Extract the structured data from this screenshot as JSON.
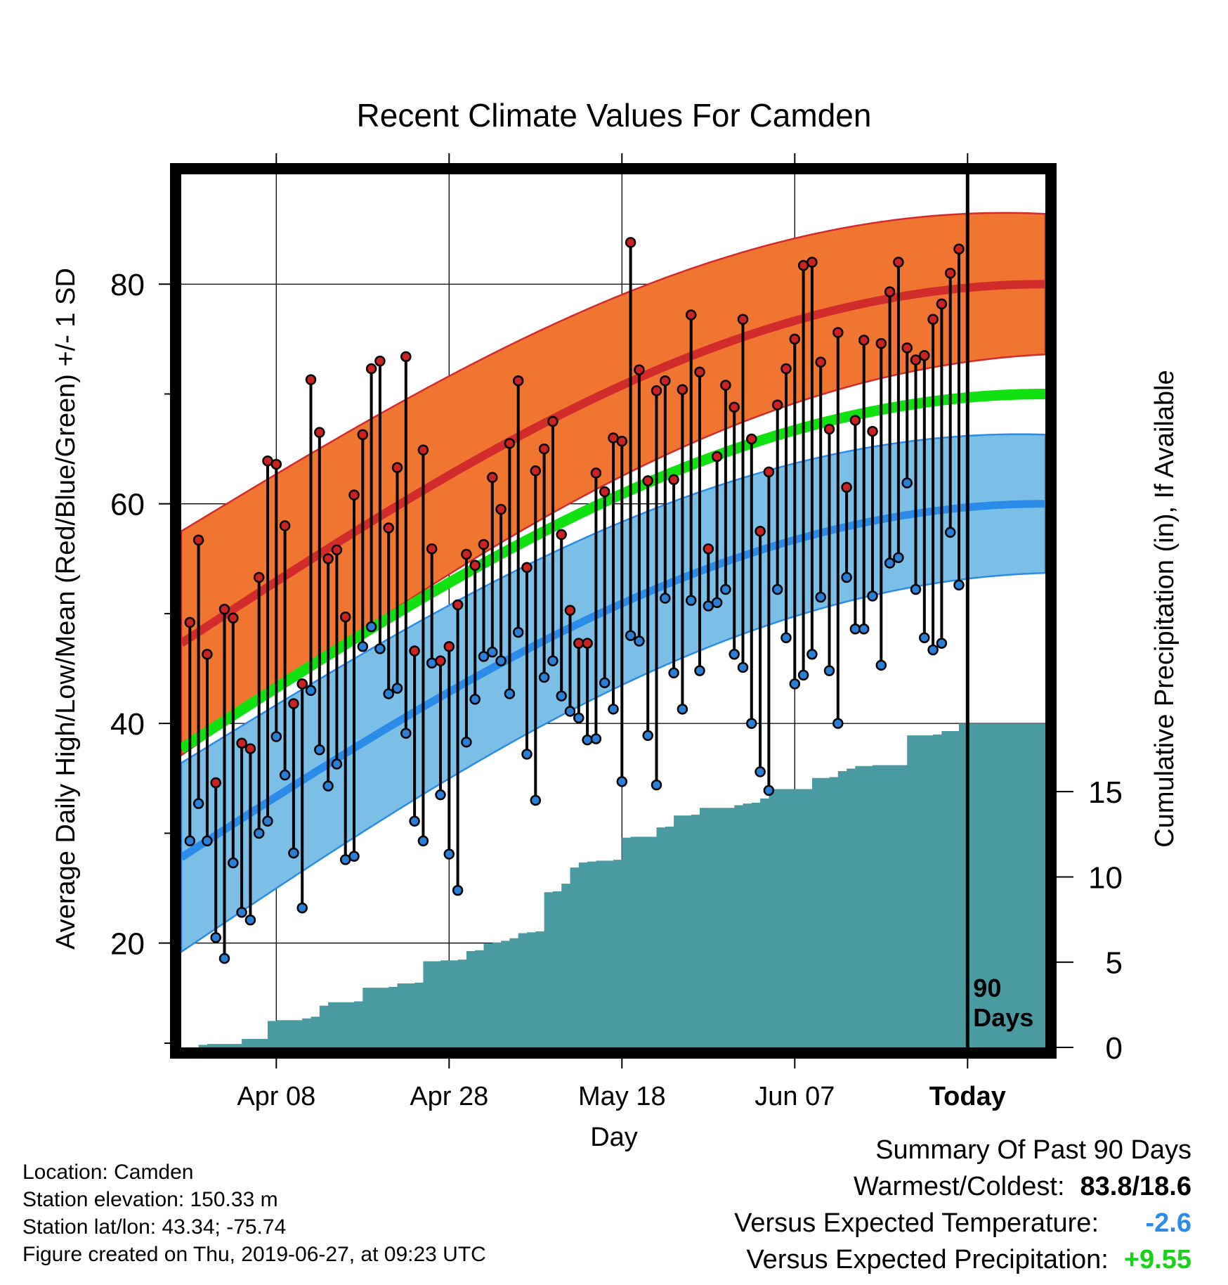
{
  "colors": {
    "high_band": "#f07530",
    "high_mean_line": "#d22b2b",
    "band_edge_red": "#d22b2b",
    "low_band": "#7bbfe6",
    "low_mean_line": "#2a8ce8",
    "band_edge_blue": "#2a8ce8",
    "mean_line": "#11e011",
    "precip_fill": "#4a9aa2",
    "high_marker": "#cc2222",
    "low_marker": "#2a7fd6",
    "temp_anomaly": "#2a8ce8",
    "precip_anomaly": "#19d119"
  },
  "chart_data": {
    "type": "line",
    "title": "Recent Climate Values For Camden",
    "xlabel": "Day",
    "ylabel": "Average Daily High/Low/Mean (Red/Blue/Green) +/- 1 SD",
    "y2label": "Cumulative Precipitation (in), If Available",
    "x_ticks": [
      {
        "day": 10,
        "label": "Apr 08"
      },
      {
        "day": 30,
        "label": "Apr 28"
      },
      {
        "day": 50,
        "label": "May 18"
      },
      {
        "day": 70,
        "label": "Jun 07"
      },
      {
        "day": 90,
        "label": "Today"
      }
    ],
    "y_ticks": [
      20,
      40,
      60,
      80
    ],
    "y_minor_ticks": [
      30,
      50,
      70
    ],
    "y2_ticks": [
      0,
      5,
      10,
      15
    ],
    "ylim": [
      10.5,
      90
    ],
    "y2lim": [
      0,
      19
    ],
    "xlim": [
      -1,
      99
    ],
    "today_marker": {
      "day": 90,
      "label_line1": "90",
      "label_line2": "Days"
    },
    "normal_high": {
      "start": 47.3,
      "end": 80.0,
      "sd_start": 10.2,
      "sd_end": 6.4
    },
    "normal_low": {
      "start": 27.8,
      "end": 60.0,
      "sd_start": 8.6,
      "sd_end": 6.3
    },
    "normal_mean": {
      "start": 37.7,
      "end": 70.0
    },
    "daily_high": [
      49.2,
      56.7,
      46.3,
      34.6,
      50.4,
      49.6,
      38.2,
      37.7,
      53.3,
      63.9,
      63.6,
      58.0,
      41.8,
      43.6,
      71.3,
      66.5,
      55.0,
      55.8,
      49.7,
      60.8,
      66.3,
      72.3,
      73.0,
      57.8,
      63.3,
      73.4,
      46.6,
      64.9,
      55.9,
      45.7,
      47.0,
      50.8,
      55.4,
      54.4,
      56.3,
      62.4,
      59.5,
      65.5,
      71.2,
      54.2,
      63.0,
      65.0,
      67.5,
      57.2,
      50.3,
      47.3,
      47.3,
      62.8,
      61.1,
      66.0,
      65.7,
      83.8,
      72.2,
      62.1,
      70.3,
      71.2,
      62.2,
      70.4,
      77.2,
      72.0,
      55.9,
      64.3,
      70.8,
      68.8,
      76.8,
      65.9,
      57.5,
      62.9,
      69.0,
      72.3,
      75.0,
      81.7,
      82.0,
      72.9,
      66.8,
      75.6,
      61.5,
      67.6,
      74.9,
      66.6,
      74.6,
      79.3,
      82.0,
      74.2,
      73.1,
      73.5,
      76.8,
      78.2,
      81.0,
      83.2
    ],
    "daily_low": [
      29.3,
      32.7,
      29.3,
      20.5,
      18.6,
      27.3,
      22.8,
      22.1,
      30.0,
      31.1,
      38.8,
      35.3,
      28.2,
      23.2,
      43.0,
      37.6,
      34.3,
      36.3,
      27.6,
      27.9,
      47.0,
      48.8,
      46.8,
      42.7,
      43.2,
      39.1,
      31.1,
      29.3,
      45.5,
      33.5,
      28.1,
      24.8,
      38.3,
      42.2,
      46.1,
      46.5,
      45.7,
      42.7,
      48.3,
      37.2,
      33.0,
      44.2,
      45.7,
      42.5,
      41.1,
      40.5,
      38.5,
      38.6,
      43.7,
      41.3,
      34.7,
      48.0,
      47.5,
      38.9,
      34.4,
      51.4,
      44.6,
      41.3,
      51.2,
      44.8,
      50.7,
      51.0,
      52.2,
      46.3,
      45.1,
      40.0,
      35.6,
      33.9,
      52.2,
      47.8,
      43.6,
      44.4,
      46.3,
      51.5,
      44.8,
      40.0,
      53.3,
      48.6,
      48.6,
      51.6,
      45.3,
      54.6,
      55.1,
      61.9,
      52.2,
      47.8,
      46.7,
      47.3,
      57.4,
      52.6
    ],
    "precip_cumulative": [
      0.0,
      0.0,
      0.15,
      0.2,
      0.2,
      0.2,
      0.2,
      0.5,
      0.5,
      0.5,
      1.55,
      1.6,
      1.6,
      1.6,
      1.7,
      1.8,
      2.45,
      2.65,
      2.65,
      2.65,
      2.7,
      3.5,
      3.5,
      3.5,
      3.55,
      3.75,
      3.75,
      3.8,
      5.05,
      5.05,
      5.1,
      5.1,
      5.15,
      5.65,
      5.7,
      6.1,
      6.15,
      6.25,
      6.4,
      6.7,
      6.75,
      6.8,
      9.1,
      9.15,
      9.6,
      10.55,
      10.85,
      10.9,
      10.95,
      10.95,
      11.0,
      12.3,
      12.35,
      12.35,
      12.35,
      12.9,
      12.95,
      13.6,
      13.6,
      13.65,
      14.05,
      14.05,
      14.05,
      14.05,
      14.2,
      14.3,
      14.35,
      14.6,
      15.15,
      15.15,
      15.15,
      15.15,
      15.15,
      15.8,
      15.8,
      15.85,
      16.2,
      16.35,
      16.5,
      16.5,
      16.55,
      16.55,
      16.55,
      16.55,
      18.3,
      18.3,
      18.3,
      18.35,
      18.55,
      18.55,
      19.0,
      19.0,
      19.0,
      19.0,
      19.0,
      19.0,
      19.0,
      19.0,
      19.0,
      19.0
    ]
  },
  "info": {
    "location": "Location: Camden",
    "elevation": "Station elevation: 150.33 m",
    "latlon": "Station lat/lon: 43.34; -75.74",
    "created": "Figure created on Thu, 2019-06-27, at 09:23 UTC"
  },
  "summary": {
    "heading": "Summary Of Past 90 Days",
    "warmest_coldest_label": "Warmest/Coldest:",
    "warmest_coldest_value": "83.8/18.6",
    "temp_label": "Versus Expected Temperature:",
    "temp_value": "-2.6",
    "precip_label": "Versus Expected Precipitation:",
    "precip_value": "+9.55"
  }
}
